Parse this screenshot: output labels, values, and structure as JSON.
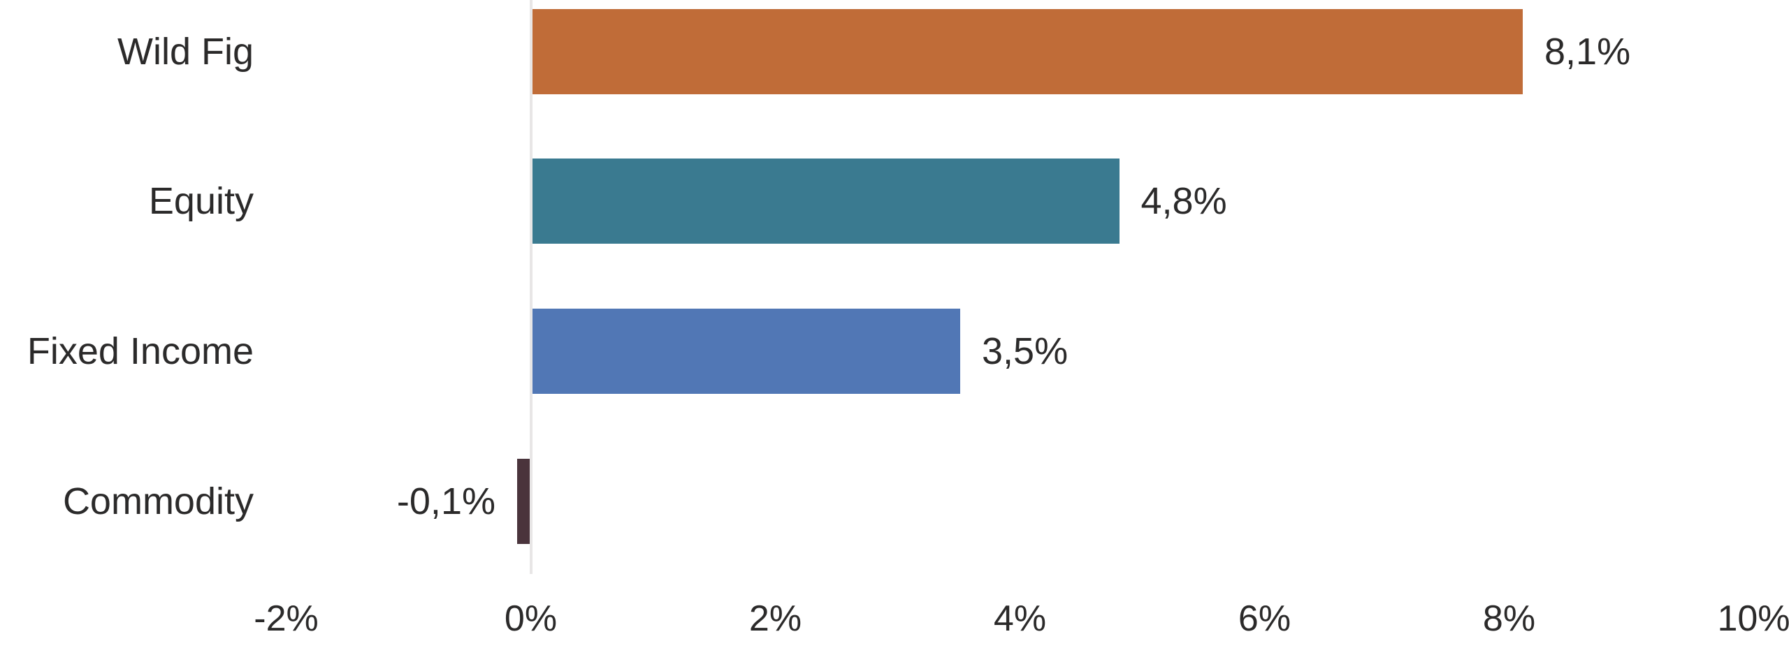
{
  "chart_data": {
    "type": "bar",
    "orientation": "horizontal",
    "title": "",
    "xlabel": "",
    "ylabel": "",
    "categories": [
      "Wild Fig",
      "Equity",
      "Fixed Income",
      "Commodity"
    ],
    "values": [
      8.1,
      4.8,
      3.5,
      -0.1
    ],
    "value_labels": [
      "8,1%",
      "4,8%",
      "3,5%",
      "-0,1%"
    ],
    "bar_colors": [
      "#c06c38",
      "#3a7a90",
      "#5177b5",
      "#4a343c"
    ],
    "x_axis": {
      "min": -2,
      "max": 10,
      "tick_step": 2,
      "tick_values": [
        -2,
        0,
        2,
        4,
        6,
        8,
        10
      ],
      "tick_labels": [
        "-2%",
        "0%",
        "2%",
        "4%",
        "6%",
        "8%",
        "10%"
      ]
    },
    "grid": false,
    "legend": "none",
    "zero_line_color": "#e8e6e6",
    "text_color": "#2b2a2a",
    "background_color": "#ffffff"
  }
}
